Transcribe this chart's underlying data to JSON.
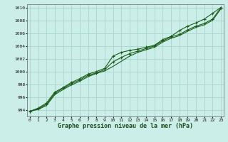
{
  "title": "Graphe pression niveau de la mer (hPa)",
  "background_color": "#cceee8",
  "grid_color": "#aad8d0",
  "line_color": "#1a5c1a",
  "x_ticks": [
    0,
    1,
    2,
    3,
    4,
    5,
    6,
    7,
    8,
    9,
    10,
    11,
    12,
    13,
    14,
    15,
    16,
    17,
    18,
    19,
    20,
    21,
    22,
    23
  ],
  "ylim": [
    993.0,
    1010.5
  ],
  "yticks": [
    994,
    996,
    998,
    1000,
    1002,
    1004,
    1006,
    1008,
    1010
  ],
  "series1": [
    993.8,
    994.3,
    995.1,
    996.8,
    997.5,
    998.3,
    998.9,
    999.6,
    1000.0,
    1000.5,
    1002.4,
    1003.0,
    1003.3,
    1003.5,
    1003.8,
    1004.1,
    1005.0,
    1005.5,
    1006.4,
    1007.1,
    1007.6,
    1008.2,
    1009.1,
    1010.0
  ],
  "series2": [
    993.8,
    994.2,
    994.9,
    996.6,
    997.4,
    998.1,
    998.7,
    999.4,
    999.8,
    1000.3,
    1001.5,
    1002.2,
    1002.8,
    1003.2,
    1003.6,
    1004.0,
    1004.8,
    1005.4,
    1005.8,
    1006.5,
    1007.1,
    1007.5,
    1008.2,
    1010.0
  ],
  "series3": [
    993.8,
    994.1,
    994.7,
    996.4,
    997.2,
    997.9,
    998.5,
    999.2,
    999.7,
    1000.1,
    1000.8,
    1001.6,
    1002.4,
    1003.0,
    1003.4,
    1003.8,
    1004.6,
    1005.2,
    1005.6,
    1006.3,
    1006.9,
    1007.3,
    1008.0,
    1009.8
  ]
}
